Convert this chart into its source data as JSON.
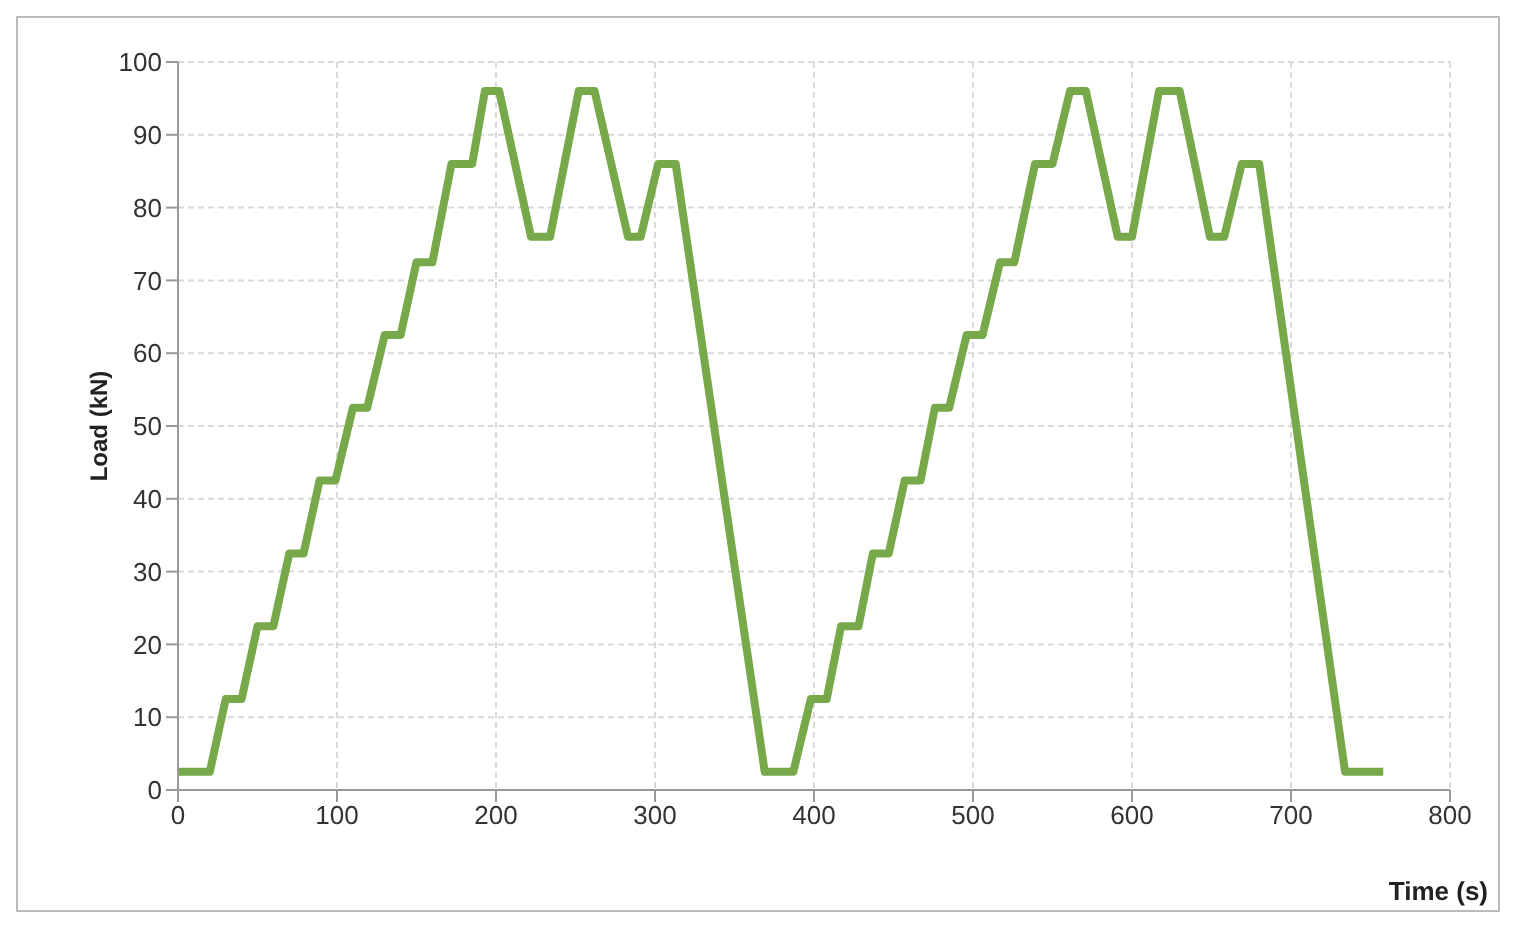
{
  "chart_data": {
    "type": "line",
    "xlabel": "Time (s)",
    "ylabel": "Load (kN)",
    "xlim": [
      0,
      800
    ],
    "xticks": [
      0,
      100,
      200,
      300,
      400,
      500,
      600,
      700,
      800
    ],
    "ylim": [
      0,
      100
    ],
    "yticks": [
      0,
      10,
      20,
      30,
      40,
      50,
      60,
      70,
      80,
      90,
      100
    ],
    "grid": true,
    "legend": false,
    "marker": "none",
    "line_style": "solid",
    "series": [
      {
        "color": "#77a94a",
        "x": [
          0,
          20,
          30,
          40,
          50,
          60,
          70,
          79,
          89,
          99,
          110,
          119,
          130,
          140,
          150,
          160,
          172,
          185,
          193,
          202,
          222,
          234,
          252,
          262,
          283,
          291,
          302,
          313,
          369,
          387,
          398,
          408,
          417,
          428,
          437,
          447,
          457,
          467,
          476,
          485,
          496,
          506,
          517,
          526,
          539,
          550,
          561,
          571,
          591,
          600,
          617,
          630,
          649,
          658,
          669,
          680,
          734,
          758
        ],
        "values": [
          2.5,
          2.5,
          12.5,
          12.5,
          22.5,
          22.5,
          32.5,
          32.5,
          42.5,
          42.5,
          52.5,
          52.5,
          62.5,
          62.5,
          72.5,
          72.5,
          86,
          86,
          96,
          96,
          76,
          76,
          96,
          96,
          76,
          76,
          86,
          86,
          2.5,
          2.5,
          12.5,
          12.5,
          22.5,
          22.5,
          32.5,
          32.5,
          42.5,
          42.5,
          52.5,
          52.5,
          62.5,
          62.5,
          72.5,
          72.5,
          86,
          86,
          96,
          96,
          76,
          76,
          96,
          96,
          76,
          76,
          86,
          86,
          2.5,
          2.5
        ]
      }
    ]
  }
}
